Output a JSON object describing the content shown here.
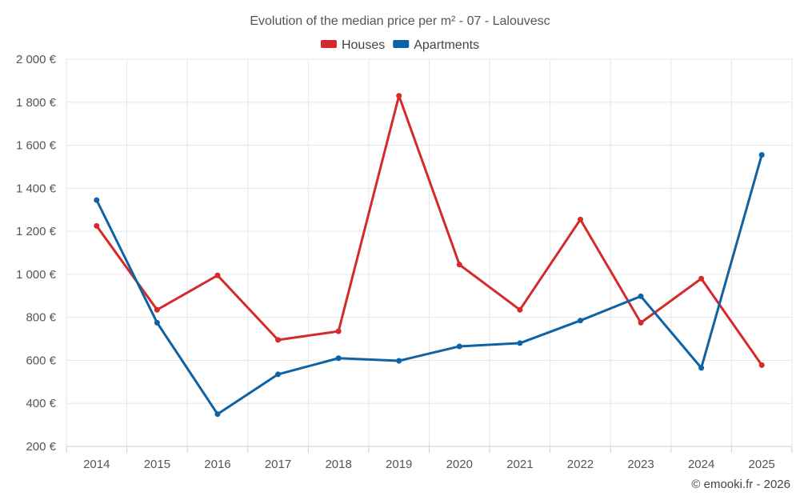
{
  "chart_data": {
    "type": "line",
    "title": "Evolution of the median price per m² - 07 - Lalouvesc",
    "categories": [
      "2014",
      "2015",
      "2016",
      "2017",
      "2018",
      "2019",
      "2020",
      "2021",
      "2022",
      "2023",
      "2024",
      "2025"
    ],
    "y_ticks": [
      200,
      400,
      600,
      800,
      1000,
      1200,
      1400,
      1600,
      1800,
      2000
    ],
    "y_tick_labels": [
      "200 €",
      "400 €",
      "600 €",
      "800 €",
      "1 000 €",
      "1 200 €",
      "1 400 €",
      "1 600 €",
      "1 800 €",
      "2 000 €"
    ],
    "ylim": [
      200,
      2000
    ],
    "grid": true,
    "legend_position": "top-center",
    "series": [
      {
        "name": "Houses",
        "color": "#d42a2a",
        "values": [
          1225,
          835,
          995,
          695,
          735,
          1830,
          1045,
          835,
          1255,
          775,
          980,
          578
        ]
      },
      {
        "name": "Apartments",
        "color": "#0f62a3",
        "values": [
          1345,
          775,
          350,
          535,
          610,
          598,
          665,
          680,
          785,
          898,
          565,
          1555
        ]
      }
    ]
  },
  "credit": "© emooki.fr - 2026"
}
